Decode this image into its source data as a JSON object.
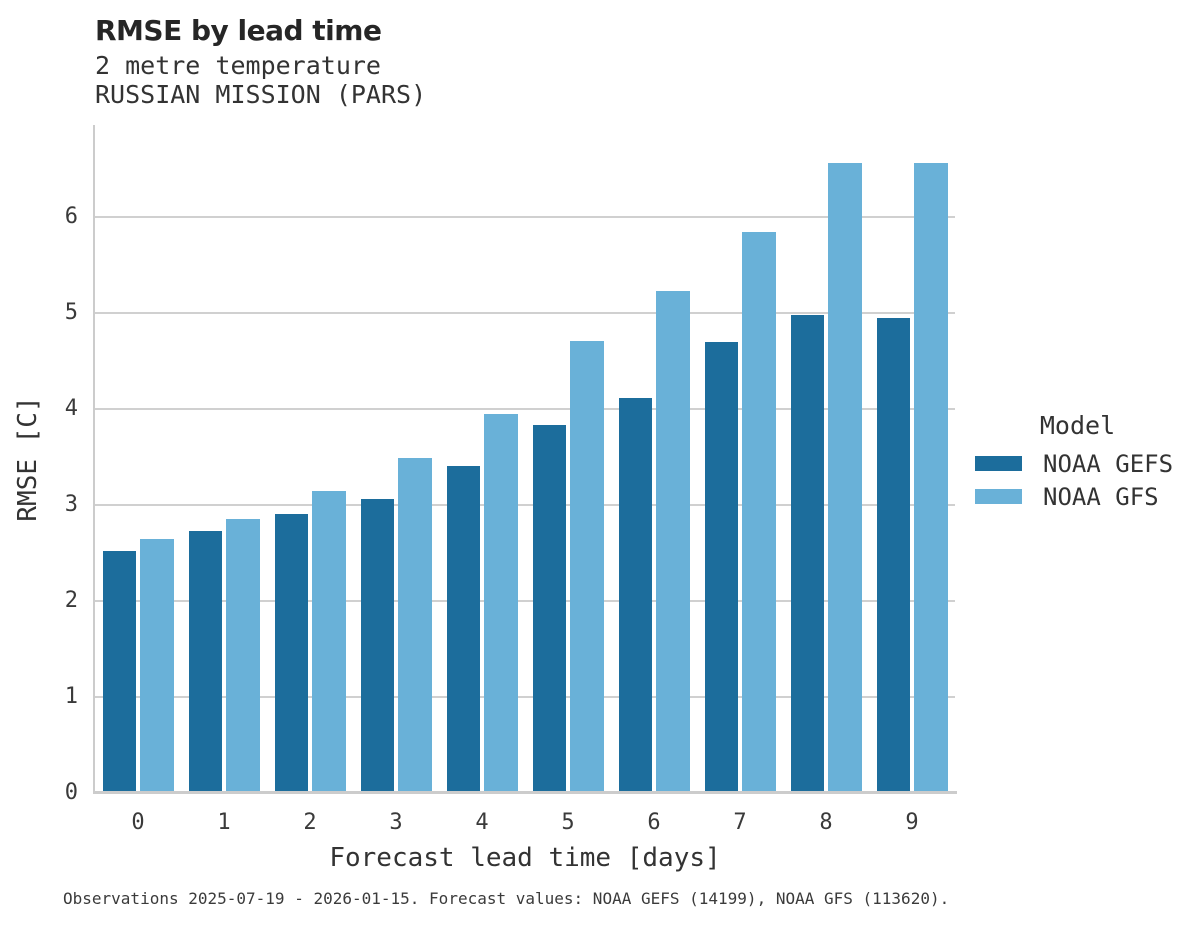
{
  "title": "RMSE by lead time",
  "subtitle_line1": "2 metre temperature",
  "subtitle_line2": "RUSSIAN MISSION (PARS)",
  "caption": "Observations 2025-07-19 - 2026-01-15. Forecast values: NOAA GEFS (14199), NOAA GFS (113620).",
  "legend": {
    "title": "Model",
    "entries": [
      {
        "label": "NOAA GEFS",
        "color": "#1c6d9c"
      },
      {
        "label": "NOAA GFS",
        "color": "#69b1d8"
      }
    ]
  },
  "colors": {
    "gefs_bar": "#1c6d9c",
    "gfs_bar": "#69b1d8",
    "gridline": "#d0d0d0",
    "spine": "#cccccc",
    "text": "#333333"
  },
  "chart_data": {
    "type": "bar",
    "title": "RMSE by lead time",
    "subtitle": [
      "2 metre temperature",
      "RUSSIAN MISSION (PARS)"
    ],
    "categories": [
      "0",
      "1",
      "2",
      "3",
      "4",
      "5",
      "6",
      "7",
      "8",
      "9"
    ],
    "series": [
      {
        "name": "NOAA GEFS",
        "color": "#1c6d9c",
        "values": [
          2.52,
          2.73,
          2.91,
          3.06,
          3.41,
          3.83,
          4.11,
          4.7,
          4.98,
          4.95
        ]
      },
      {
        "name": "NOAA GFS",
        "color": "#69b1d8",
        "values": [
          2.65,
          2.85,
          3.15,
          3.49,
          3.95,
          4.71,
          5.23,
          5.84,
          6.56,
          6.56
        ]
      }
    ],
    "xlabel": "Forecast lead time [days]",
    "ylabel": "RMSE [C]",
    "ylim": [
      0,
      6.96
    ],
    "yticks": [
      0,
      1,
      2,
      3,
      4,
      5,
      6
    ],
    "grid": true,
    "legend_title": "Model",
    "legend_position": "right of plot, vertically centered"
  }
}
